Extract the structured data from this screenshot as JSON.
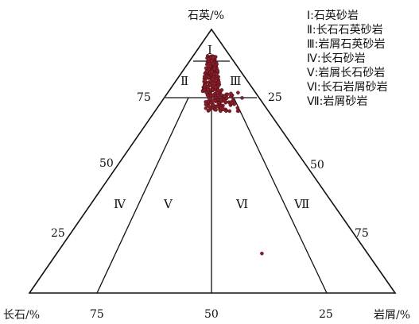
{
  "vertices": {
    "top": "石英/%",
    "left": "长石/%",
    "right": "岩屑/%"
  },
  "left_ticks": [
    "75",
    "50",
    "25"
  ],
  "right_ticks": [
    "25",
    "50",
    "75"
  ],
  "bottom_ticks": [
    "75",
    "50",
    "25"
  ],
  "zones": [
    "Ⅰ",
    "Ⅱ",
    "Ⅲ",
    "Ⅳ",
    "Ⅴ",
    "Ⅵ",
    "Ⅶ"
  ],
  "legend": [
    "Ⅰ:石英砂岩",
    "Ⅱ:长石石英砂岩",
    "Ⅲ:岩屑石英砂岩",
    "Ⅳ:长石砂岩",
    "Ⅴ:岩屑长石砂岩",
    "Ⅵ:长石岩屑砂岩",
    "Ⅶ:岩屑砂岩"
  ],
  "colors": {
    "point": "#8a1f2a",
    "line": "#111111"
  },
  "samples_note": "Approx. 300 sample points clustered at Q≈75–90%, R/(F+R)≈40–70%, plus one outlier near Q≈15%",
  "sample_points": [
    [
      0.88,
      0.5
    ],
    [
      0.87,
      0.53
    ],
    [
      0.86,
      0.47
    ],
    [
      0.85,
      0.55
    ],
    [
      0.84,
      0.5
    ],
    [
      0.83,
      0.58
    ],
    [
      0.82,
      0.45
    ],
    [
      0.81,
      0.52
    ],
    [
      0.8,
      0.6
    ],
    [
      0.79,
      0.48
    ],
    [
      0.78,
      0.55
    ],
    [
      0.77,
      0.62
    ],
    [
      0.76,
      0.44
    ],
    [
      0.75,
      0.57
    ],
    [
      0.74,
      0.66
    ],
    [
      0.73,
      0.51
    ],
    [
      0.72,
      0.7
    ],
    [
      0.71,
      0.47
    ],
    [
      0.7,
      0.59
    ],
    [
      0.69,
      0.73
    ],
    [
      0.76,
      0.8
    ],
    [
      0.74,
      0.82
    ],
    [
      0.15,
      0.66
    ]
  ]
}
